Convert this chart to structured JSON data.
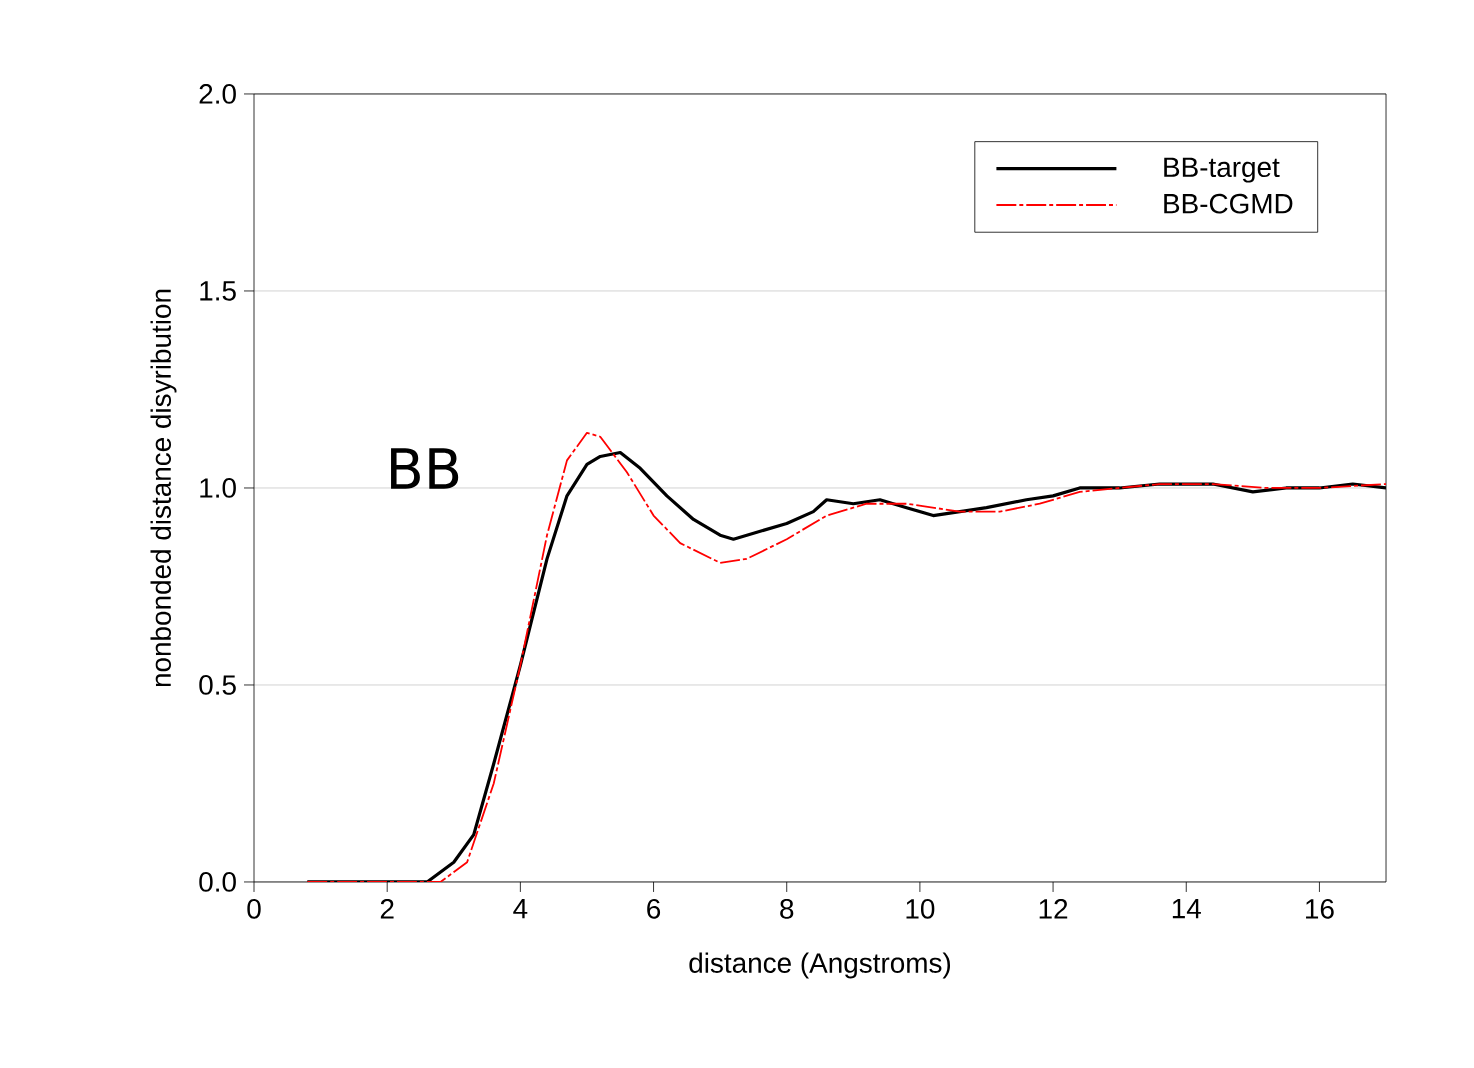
{
  "chart_data": {
    "type": "line",
    "xlabel": "distance (Angstroms)",
    "ylabel": "nonbonded distance disyribution",
    "xlim": [
      0,
      17
    ],
    "ylim": [
      0,
      2.0
    ],
    "xticks": [
      0,
      2,
      4,
      6,
      8,
      10,
      12,
      14,
      16
    ],
    "yticks": [
      {
        "value": 0,
        "label": "0.0"
      },
      {
        "value": 0.5,
        "label": "0.5"
      },
      {
        "value": 1.0,
        "label": "1.0"
      },
      {
        "value": 1.5,
        "label": "1.5"
      },
      {
        "value": 2.0,
        "label": "2.0"
      }
    ],
    "grid": "y",
    "legend": "top right",
    "marker": "none",
    "annotations": [
      "BB"
    ],
    "series": [
      {
        "name": "BB-target",
        "color": "#000000",
        "line_style": "solid",
        "x": [
          0.8,
          2,
          2.6,
          3.0,
          3.3,
          3.6,
          4.0,
          4.4,
          4.7,
          5.0,
          5.2,
          5.5,
          5.8,
          6.2,
          6.6,
          7.0,
          7.2,
          7.6,
          8.0,
          8.4,
          8.6,
          9.0,
          9.4,
          9.8,
          10.2,
          10.6,
          11.0,
          11.6,
          12.0,
          12.4,
          13.0,
          13.6,
          14.4,
          15.0,
          15.5,
          16.0,
          16.5,
          17
        ],
        "values": [
          0,
          0,
          0,
          0.05,
          0.12,
          0.3,
          0.55,
          0.82,
          0.98,
          1.06,
          1.08,
          1.09,
          1.05,
          0.98,
          0.92,
          0.88,
          0.87,
          0.89,
          0.91,
          0.94,
          0.97,
          0.96,
          0.97,
          0.95,
          0.93,
          0.94,
          0.95,
          0.97,
          0.98,
          1.0,
          1.0,
          1.01,
          1.01,
          0.99,
          1.0,
          1.0,
          1.01,
          1.0
        ]
      },
      {
        "name": "BB-CGMD",
        "color": "#ff0000",
        "line_style": "dashdot",
        "x": [
          0.8,
          2,
          2.8,
          3.2,
          3.6,
          4.0,
          4.4,
          4.7,
          5.0,
          5.2,
          5.6,
          6.0,
          6.4,
          7.0,
          7.4,
          8.0,
          8.6,
          9.2,
          9.8,
          10.6,
          11.2,
          11.8,
          12.4,
          13.0,
          13.6,
          14.4,
          15.2,
          16.0,
          17
        ],
        "values": [
          0,
          0,
          0,
          0.05,
          0.25,
          0.55,
          0.88,
          1.07,
          1.14,
          1.13,
          1.04,
          0.93,
          0.86,
          0.81,
          0.82,
          0.87,
          0.93,
          0.96,
          0.96,
          0.94,
          0.94,
          0.96,
          0.99,
          1.0,
          1.01,
          1.01,
          1.0,
          1.0,
          1.01
        ]
      }
    ]
  }
}
